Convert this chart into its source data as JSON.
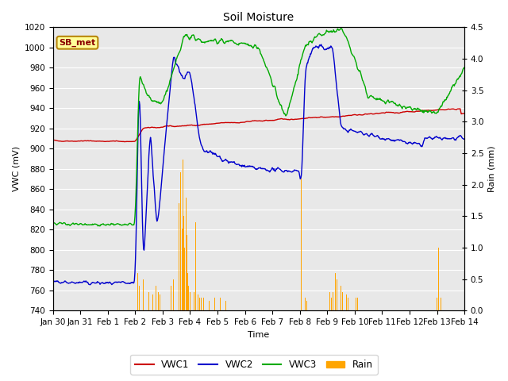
{
  "title": "Soil Moisture",
  "xlabel": "Time",
  "ylabel_left": "VWC (mV)",
  "ylabel_right": "Rain (mm)",
  "ylim_left": [
    740,
    1020
  ],
  "ylim_right": [
    0.0,
    4.5
  ],
  "yticks_left": [
    740,
    760,
    780,
    800,
    820,
    840,
    860,
    880,
    900,
    920,
    940,
    960,
    980,
    1000,
    1020
  ],
  "yticks_right": [
    0.0,
    0.5,
    1.0,
    1.5,
    2.0,
    2.5,
    3.0,
    3.5,
    4.0,
    4.5
  ],
  "background_color": "#e8e8e8",
  "annotation_text": "SB_met",
  "annotation_color": "#8b0000",
  "annotation_bg": "#ffff99",
  "annotation_border": "#b8860b",
  "vwc1_color": "#cc0000",
  "vwc2_color": "#0000cc",
  "vwc3_color": "#00aa00",
  "rain_color": "#ffa500",
  "xtick_labels": [
    "Jan 30",
    "Jan 31",
    "Feb 1",
    "Feb 2",
    "Feb 3",
    "Feb 4",
    "Feb 5",
    "Feb 6",
    "Feb 7",
    "Feb 8",
    "Feb 9",
    "Feb 10",
    "Feb 11",
    "Feb 12",
    "Feb 13",
    "Feb 14"
  ],
  "grid_color": "white",
  "title_fontsize": 10,
  "label_fontsize": 8,
  "tick_fontsize": 7.5
}
